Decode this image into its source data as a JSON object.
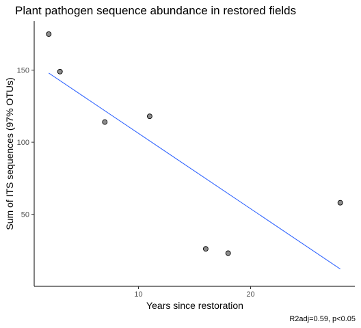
{
  "chart_data": {
    "type": "scatter",
    "title": "Plant pathogen sequence abundance in restored fields",
    "xlabel": "Years since restoration",
    "ylabel": "Sum of ITS sequences (97% OTUs)",
    "caption": "R2adj=0.59, p<0.05",
    "xlim": [
      0.7,
      29.3
    ],
    "ylim": [
      0,
      184
    ],
    "xticks": [
      10,
      20
    ],
    "yticks": [
      50,
      100,
      150
    ],
    "grid": false,
    "legend": "none",
    "points": [
      {
        "x": 2,
        "y": 175
      },
      {
        "x": 3,
        "y": 149
      },
      {
        "x": 7,
        "y": 114
      },
      {
        "x": 11,
        "y": 118
      },
      {
        "x": 16,
        "y": 26
      },
      {
        "x": 18,
        "y": 23
      },
      {
        "x": 28,
        "y": 58
      }
    ],
    "fit_line": {
      "x": [
        2,
        28
      ],
      "y": [
        148,
        12
      ]
    },
    "colors": {
      "points_fill": "#8c8c8c",
      "points_stroke": "#000000",
      "fit_line": "#3366ff"
    }
  }
}
